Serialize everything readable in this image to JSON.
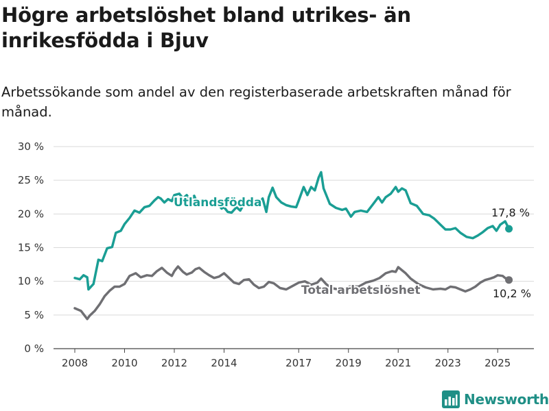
{
  "title": "Högre arbetslöshet bland utrikes- än inrikesfödda i Bjuv",
  "subtitle": "Arbetssökande som andel av den registerbaserade arbetskraften månad för månad.",
  "brand": {
    "name": "Newsworthy",
    "icon": "newsworthy-bar-chart-logo-icon",
    "color": "#1f8f86"
  },
  "chart_data": {
    "type": "line",
    "ylim": [
      0,
      30
    ],
    "yticks": [
      0,
      5,
      10,
      15,
      20,
      25,
      30
    ],
    "ytick_labels": [
      "0 %",
      "5 %",
      "10 %",
      "15 %",
      "20 %",
      "25 %",
      "30 %"
    ],
    "xlim": [
      2008.0,
      2025.6
    ],
    "xticks": [
      2008,
      2010,
      2012,
      2014,
      2017,
      2019,
      2021,
      2023,
      2025
    ],
    "xtick_labels": [
      "2008",
      "2010",
      "2012",
      "2014",
      "2017",
      "2019",
      "2021",
      "2023",
      "2025"
    ],
    "grid": true,
    "legend": "direct labels",
    "series": [
      {
        "name": "Utlandsfödda",
        "color": "#1a9e94",
        "end_label": "17,8 %",
        "x": [
          2008.0,
          2008.2,
          2008.35,
          2008.5,
          2008.55,
          2008.75,
          2008.95,
          2009.1,
          2009.3,
          2009.5,
          2009.65,
          2009.85,
          2010.0,
          2010.2,
          2010.4,
          2010.6,
          2010.8,
          2011.0,
          2011.2,
          2011.35,
          2011.45,
          2011.6,
          2011.75,
          2011.9,
          2012.0,
          2012.2,
          2012.35,
          2012.5,
          2012.65,
          2012.8,
          2012.9,
          2013.0,
          2013.2,
          2013.4,
          2013.6,
          2013.75,
          2013.9,
          2014.0,
          2014.15,
          2014.3,
          2014.5,
          2014.65,
          2014.8,
          2015.0,
          2015.2,
          2015.4,
          2015.55,
          2015.7,
          2015.8,
          2015.95,
          2016.1,
          2016.3,
          2016.5,
          2016.7,
          2016.9,
          2017.0,
          2017.2,
          2017.35,
          2017.5,
          2017.65,
          2017.8,
          2017.9,
          2018.0,
          2018.25,
          2018.5,
          2018.75,
          2018.9,
          2019.0,
          2019.1,
          2019.25,
          2019.5,
          2019.75,
          2020.0,
          2020.2,
          2020.35,
          2020.5,
          2020.7,
          2020.9,
          2021.0,
          2021.15,
          2021.3,
          2021.5,
          2021.75,
          2022.0,
          2022.25,
          2022.45,
          2022.7,
          2022.9,
          2023.1,
          2023.3,
          2023.5,
          2023.75,
          2024.0,
          2024.2,
          2024.4,
          2024.6,
          2024.8,
          2024.95,
          2025.1,
          2025.3,
          2025.45
        ],
        "values": [
          10.5,
          10.3,
          10.9,
          10.6,
          8.8,
          9.6,
          13.2,
          13.0,
          14.9,
          15.1,
          17.2,
          17.5,
          18.5,
          19.4,
          20.5,
          20.2,
          21.0,
          21.2,
          22.0,
          22.5,
          22.3,
          21.7,
          22.2,
          21.9,
          22.8,
          23.0,
          22.3,
          22.8,
          22.0,
          22.7,
          21.8,
          22.0,
          21.8,
          21.5,
          21.3,
          21.6,
          20.8,
          21.0,
          20.3,
          20.2,
          21.0,
          20.5,
          21.5,
          22.0,
          22.0,
          21.5,
          22.3,
          20.3,
          22.5,
          23.9,
          22.5,
          21.7,
          21.3,
          21.1,
          21.0,
          22.0,
          24.0,
          22.8,
          24.0,
          23.5,
          25.4,
          26.2,
          23.8,
          21.5,
          20.9,
          20.6,
          20.8,
          20.2,
          19.6,
          20.3,
          20.5,
          20.3,
          21.5,
          22.5,
          21.7,
          22.5,
          23.0,
          24.0,
          23.3,
          23.8,
          23.5,
          21.6,
          21.2,
          20.0,
          19.8,
          19.3,
          18.4,
          17.7,
          17.7,
          17.9,
          17.2,
          16.6,
          16.4,
          16.8,
          17.3,
          17.9,
          18.2,
          17.5,
          18.4,
          18.9,
          17.8
        ]
      },
      {
        "name": "Total arbetslöshet",
        "color": "#6f6f73",
        "end_label": "10,2 %",
        "x": [
          2008.0,
          2008.25,
          2008.5,
          2008.6,
          2008.8,
          2009.0,
          2009.2,
          2009.4,
          2009.6,
          2009.8,
          2010.0,
          2010.2,
          2010.45,
          2010.65,
          2010.9,
          2011.1,
          2011.3,
          2011.5,
          2011.7,
          2011.9,
          2012.0,
          2012.15,
          2012.35,
          2012.5,
          2012.7,
          2012.85,
          2013.0,
          2013.2,
          2013.4,
          2013.6,
          2013.8,
          2014.0,
          2014.2,
          2014.4,
          2014.6,
          2014.8,
          2015.0,
          2015.2,
          2015.4,
          2015.6,
          2015.8,
          2016.0,
          2016.25,
          2016.5,
          2016.75,
          2017.0,
          2017.25,
          2017.5,
          2017.75,
          2017.9,
          2018.1,
          2018.3,
          2018.6,
          2018.9,
          2019.1,
          2019.4,
          2019.7,
          2020.0,
          2020.25,
          2020.5,
          2020.75,
          2020.9,
          2021.0,
          2021.1,
          2021.3,
          2021.5,
          2021.8,
          2022.1,
          2022.4,
          2022.7,
          2022.9,
          2023.1,
          2023.3,
          2023.5,
          2023.7,
          2023.9,
          2024.1,
          2024.3,
          2024.5,
          2024.7,
          2024.85,
          2025.0,
          2025.2,
          2025.3,
          2025.45
        ],
        "values": [
          6.0,
          5.6,
          4.4,
          4.9,
          5.6,
          6.6,
          7.8,
          8.6,
          9.2,
          9.2,
          9.6,
          10.8,
          11.2,
          10.6,
          10.9,
          10.8,
          11.5,
          12.0,
          11.3,
          10.8,
          11.5,
          12.2,
          11.4,
          11.0,
          11.3,
          11.8,
          12.0,
          11.4,
          10.9,
          10.5,
          10.7,
          11.2,
          10.5,
          9.8,
          9.6,
          10.2,
          10.3,
          9.5,
          9.0,
          9.2,
          9.9,
          9.7,
          9.0,
          8.8,
          9.3,
          9.8,
          10.0,
          9.5,
          9.8,
          10.4,
          9.6,
          9.0,
          8.8,
          9.0,
          9.3,
          9.2,
          9.8,
          10.1,
          10.5,
          11.2,
          11.5,
          11.4,
          12.1,
          11.8,
          11.2,
          10.4,
          9.6,
          9.1,
          8.8,
          8.9,
          8.8,
          9.2,
          9.1,
          8.8,
          8.5,
          8.8,
          9.2,
          9.8,
          10.2,
          10.4,
          10.6,
          10.9,
          10.8,
          10.5,
          10.2
        ]
      }
    ]
  }
}
